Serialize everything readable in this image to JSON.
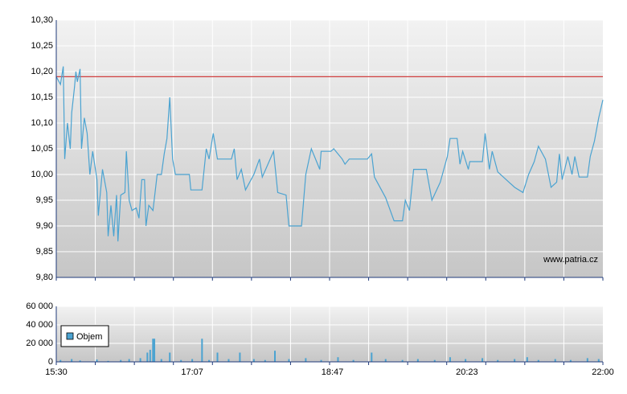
{
  "chart_data": [
    {
      "type": "line",
      "color": "#4ba3d1",
      "xlim": [
        "15:30",
        "22:00"
      ],
      "ylim": [
        9.8,
        10.3
      ],
      "yticks": [
        {
          "value": 9.8,
          "label": "9,80"
        },
        {
          "value": 9.85,
          "label": "9,85"
        },
        {
          "value": 9.9,
          "label": "9,90"
        },
        {
          "value": 9.95,
          "label": "9,95"
        },
        {
          "value": 10.0,
          "label": "10,00"
        },
        {
          "value": 10.05,
          "label": "10,05"
        },
        {
          "value": 10.1,
          "label": "10,10"
        },
        {
          "value": 10.15,
          "label": "10,15"
        },
        {
          "value": 10.2,
          "label": "10,20"
        },
        {
          "value": 10.25,
          "label": "10,25"
        },
        {
          "value": 10.3,
          "label": "10,30"
        }
      ],
      "grid": true,
      "reference_line": 10.19,
      "reference_color": "#d04040",
      "annotation": "www.patria.cz",
      "x": [
        "15:30",
        "15:33",
        "15:35",
        "15:36",
        "15:38",
        "15:40",
        "15:41",
        "15:43",
        "15:44",
        "15:45",
        "15:47",
        "15:48",
        "15:50",
        "15:52",
        "15:54",
        "15:56",
        "15:59",
        "16:00",
        "16:03",
        "16:06",
        "16:07",
        "16:09",
        "16:11",
        "16:13",
        "16:14",
        "16:16",
        "16:19",
        "16:20",
        "16:22",
        "16:24",
        "16:27",
        "16:29",
        "16:31",
        "16:33",
        "16:34",
        "16:36",
        "16:39",
        "16:42",
        "16:45",
        "16:47",
        "16:49",
        "16:51",
        "16:53",
        "16:55",
        "17:05",
        "17:06",
        "17:14",
        "17:17",
        "17:19",
        "17:22",
        "17:25",
        "17:35",
        "17:37",
        "17:39",
        "17:42",
        "17:45",
        "17:51",
        "17:55",
        "17:57",
        "18:05",
        "18:08",
        "18:14",
        "18:16",
        "18:25",
        "18:28",
        "18:32",
        "18:38",
        "18:39",
        "18:46",
        "18:48",
        "18:54",
        "18:56",
        "18:59",
        "19:12",
        "19:15",
        "19:17",
        "19:25",
        "19:31",
        "19:37",
        "19:39",
        "19:42",
        "19:45",
        "19:54",
        "19:58",
        "20:04",
        "20:09",
        "20:11",
        "20:16",
        "20:18",
        "20:20",
        "20:24",
        "20:25",
        "20:34",
        "20:36",
        "20:39",
        "20:41",
        "20:45",
        "20:57",
        "21:03",
        "21:07",
        "21:11",
        "21:14",
        "21:19",
        "21:23",
        "21:27",
        "21:29",
        "21:31",
        "21:35",
        "21:38",
        "21:40",
        "21:43",
        "21:49",
        "21:51",
        "21:54",
        "21:57",
        "22:00"
      ],
      "values": [
        10.19,
        10.175,
        10.21,
        10.03,
        10.1,
        10.05,
        10.12,
        10.17,
        10.2,
        10.18,
        10.205,
        10.05,
        10.11,
        10.08,
        10.0,
        10.045,
        9.99,
        9.92,
        10.01,
        9.965,
        9.88,
        9.94,
        9.88,
        9.96,
        9.87,
        9.96,
        9.965,
        10.045,
        9.95,
        9.93,
        9.935,
        9.915,
        9.99,
        9.99,
        9.9,
        9.94,
        9.93,
        10.0,
        10.0,
        10.04,
        10.07,
        10.15,
        10.03,
        10.0,
        10.0,
        9.97,
        9.97,
        10.05,
        10.03,
        10.08,
        10.03,
        10.03,
        10.05,
        9.99,
        10.01,
        9.97,
        10.0,
        10.03,
        9.995,
        10.045,
        9.965,
        9.96,
        9.9,
        9.9,
        10.0,
        10.05,
        10.01,
        10.045,
        10.045,
        10.05,
        10.03,
        10.02,
        10.03,
        10.03,
        10.04,
        9.995,
        9.955,
        9.91,
        9.91,
        9.95,
        9.93,
        10.01,
        10.01,
        9.95,
        9.985,
        10.035,
        10.07,
        10.07,
        10.02,
        10.045,
        10.01,
        10.025,
        10.025,
        10.08,
        10.01,
        10.045,
        10.005,
        9.975,
        9.965,
        10.0,
        10.025,
        10.055,
        10.03,
        9.975,
        9.985,
        10.04,
        9.99,
        10.035,
        10.0,
        10.035,
        9.995,
        9.995,
        10.035,
        10.065,
        10.11,
        10.145
      ]
    },
    {
      "type": "bar",
      "xlim": [
        "15:30",
        "22:00"
      ],
      "xticks": [
        "15:30",
        "17:07",
        "18:47",
        "20:23",
        "22:00"
      ],
      "ylim": [
        0,
        60000
      ],
      "yticks": [
        0,
        {
          "value": 20000,
          "label": "20 000"
        },
        {
          "value": 40000,
          "label": "40 000"
        },
        {
          "value": 60000,
          "label": "60 000"
        }
      ],
      "grid": true,
      "legend": "top-left",
      "x": [
        "15:33",
        "15:41",
        "15:47",
        "15:59",
        "16:07",
        "16:16",
        "16:22",
        "16:30",
        "16:35",
        "16:37",
        "16:39",
        "16:40",
        "16:45",
        "16:51",
        "16:59",
        "17:07",
        "17:14",
        "17:19",
        "17:25",
        "17:33",
        "17:41",
        "17:51",
        "17:59",
        "18:06",
        "18:16",
        "18:28",
        "18:39",
        "18:51",
        "19:02",
        "19:15",
        "19:25",
        "19:37",
        "19:48",
        "20:00",
        "20:11",
        "20:22",
        "20:34",
        "20:45",
        "20:57",
        "21:06",
        "21:14",
        "21:26",
        "21:37",
        "21:49",
        "21:57"
      ],
      "series": [
        {
          "name": "Objem",
          "color": "#4ba3d1",
          "values": [
            2000,
            3000,
            1500,
            2500,
            1000,
            2000,
            3000,
            4000,
            10000,
            13000,
            25000,
            25000,
            3000,
            10000,
            2000,
            3000,
            25000,
            2000,
            10000,
            3000,
            10000,
            3000,
            2000,
            12000,
            3000,
            4000,
            2000,
            5000,
            2000,
            10000,
            3000,
            2000,
            3000,
            2000,
            5000,
            3000,
            4000,
            2000,
            3000,
            5000,
            2000,
            3000,
            2000,
            4000,
            3000
          ]
        }
      ]
    }
  ]
}
